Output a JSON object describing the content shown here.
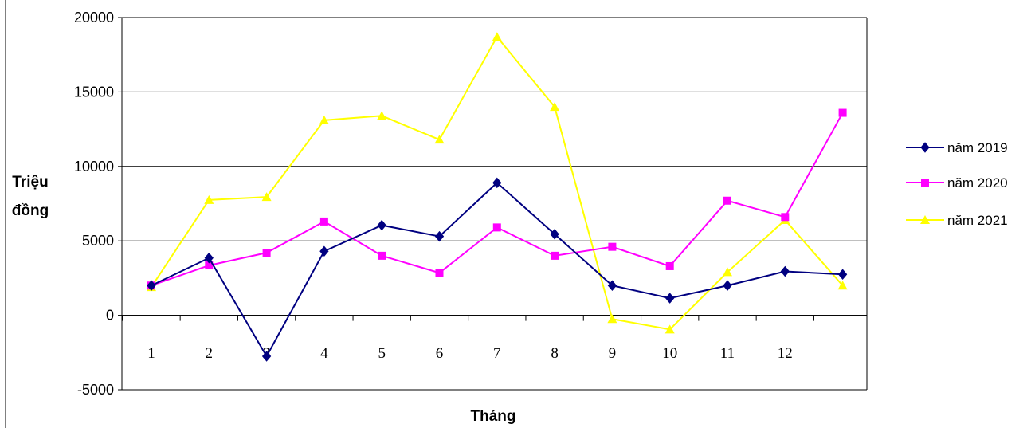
{
  "chart_data": {
    "type": "line",
    "x": [
      "1",
      "2",
      "3",
      "4",
      "5",
      "6",
      "7",
      "8",
      "9",
      "10",
      "11",
      "12",
      ""
    ],
    "xlabel": "Tháng",
    "ylabel": [
      "Triệu",
      "đồng"
    ],
    "ylim": [
      -5000,
      20000
    ],
    "yticks": [
      -5000,
      0,
      5000,
      10000,
      15000,
      20000
    ],
    "grid": true,
    "legend_position": "right",
    "series": [
      {
        "name": "năm 2019",
        "color": "#000080",
        "marker": "diamond",
        "values": [
          2000,
          3850,
          -2750,
          4300,
          6050,
          5300,
          8900,
          5450,
          2000,
          1150,
          2000,
          2950,
          2750
        ]
      },
      {
        "name": "năm 2020",
        "color": "#ff00ff",
        "marker": "square",
        "values": [
          2000,
          3350,
          4200,
          6300,
          4000,
          2850,
          5900,
          4000,
          4600,
          3300,
          7700,
          6600,
          13600
        ]
      },
      {
        "name": "năm 2021",
        "color": "#ffff00",
        "marker": "triangle",
        "values": [
          1900,
          7750,
          7950,
          13100,
          13400,
          11800,
          18700,
          14000,
          -250,
          -950,
          2900,
          6400,
          2000
        ]
      }
    ]
  }
}
